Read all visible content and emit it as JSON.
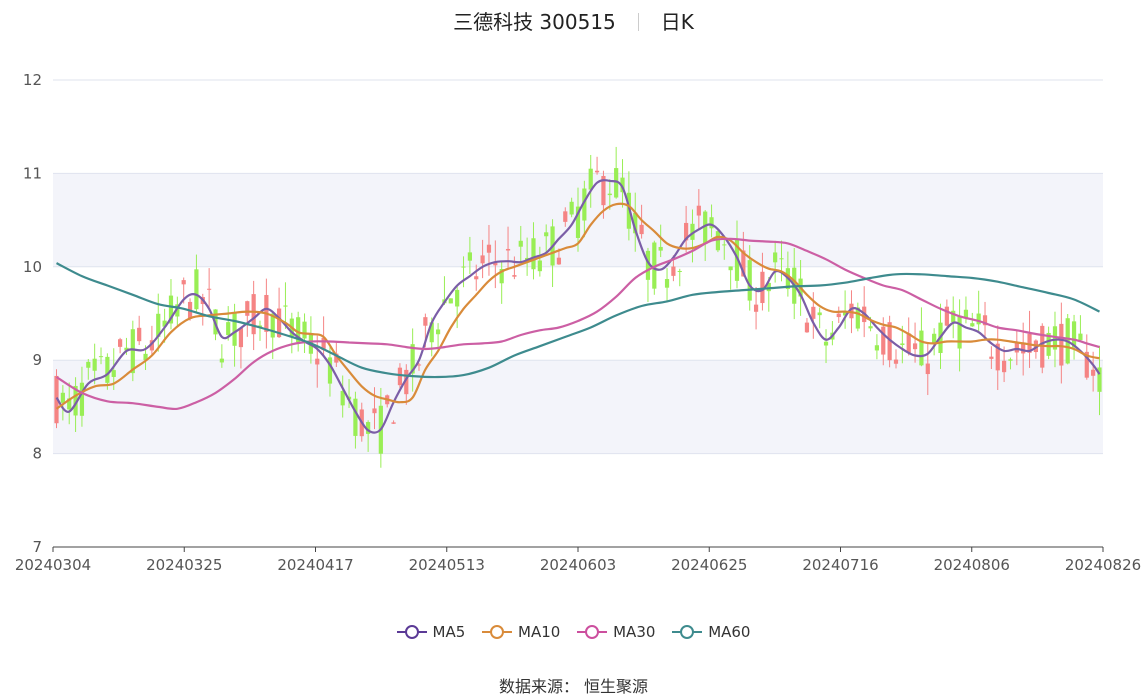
{
  "header": {
    "title": "三德科技 300515",
    "period": "日K"
  },
  "legend": {
    "ma5": "MA5",
    "ma10": "MA10",
    "ma30": "MA30",
    "ma60": "MA60"
  },
  "source": "数据来源：  恒生聚源",
  "colors": {
    "up": "#f58484",
    "down": "#99ee55",
    "ma5": "#7b5ea7",
    "ma10": "#d98b3a",
    "ma30": "#cc5fa4",
    "ma60": "#3e8b8e",
    "grid": "#dfe3ee",
    "band": "#f3f4fa"
  },
  "chart_data": {
    "type": "candlestick",
    "title": "三德科技 300515 日K",
    "ylim": [
      7,
      12
    ],
    "yticks": [
      7,
      8,
      9,
      10,
      11,
      12
    ],
    "xtick_labels": [
      "20240304",
      "20240325",
      "20240417",
      "20240513",
      "20240603",
      "20240625",
      "20240716",
      "20240806",
      "20240826"
    ],
    "series": [
      {
        "name": "MA5",
        "values": [
          [
            0,
            8.6
          ],
          [
            2,
            8.45
          ],
          [
            5,
            8.75
          ],
          [
            8,
            8.85
          ],
          [
            11,
            9.1
          ],
          [
            14,
            9.12
          ],
          [
            17,
            9.35
          ],
          [
            20,
            9.65
          ],
          [
            22,
            9.7
          ],
          [
            24,
            9.55
          ],
          [
            26,
            9.25
          ],
          [
            28,
            9.3
          ],
          [
            31,
            9.45
          ],
          [
            33,
            9.55
          ],
          [
            35,
            9.45
          ],
          [
            37,
            9.3
          ],
          [
            39,
            9.2
          ],
          [
            41,
            9.12
          ],
          [
            43,
            8.95
          ],
          [
            45,
            8.7
          ],
          [
            47,
            8.45
          ],
          [
            49,
            8.25
          ],
          [
            51,
            8.26
          ],
          [
            53,
            8.55
          ],
          [
            55,
            8.8
          ],
          [
            57,
            9.0
          ],
          [
            59,
            9.4
          ],
          [
            61,
            9.62
          ],
          [
            63,
            9.8
          ],
          [
            65,
            9.9
          ],
          [
            67,
            10.0
          ],
          [
            69,
            10.05
          ],
          [
            71,
            10.06
          ],
          [
            73,
            10.05
          ],
          [
            75,
            10.1
          ],
          [
            77,
            10.15
          ],
          [
            79,
            10.3
          ],
          [
            81,
            10.45
          ],
          [
            83,
            10.7
          ],
          [
            85,
            10.9
          ],
          [
            87,
            10.92
          ],
          [
            89,
            10.85
          ],
          [
            91,
            10.4
          ],
          [
            93,
            10.05
          ],
          [
            95,
            9.97
          ],
          [
            97,
            10.1
          ],
          [
            99,
            10.3
          ],
          [
            101,
            10.4
          ],
          [
            103,
            10.45
          ],
          [
            105,
            10.32
          ],
          [
            107,
            10.1
          ],
          [
            109,
            9.8
          ],
          [
            111,
            9.75
          ],
          [
            113,
            9.95
          ],
          [
            115,
            9.88
          ],
          [
            117,
            9.7
          ],
          [
            119,
            9.4
          ],
          [
            121,
            9.22
          ],
          [
            123,
            9.35
          ],
          [
            125,
            9.55
          ],
          [
            127,
            9.5
          ],
          [
            129,
            9.35
          ],
          [
            131,
            9.22
          ],
          [
            133,
            9.12
          ],
          [
            135,
            9.05
          ],
          [
            137,
            9.07
          ],
          [
            139,
            9.25
          ],
          [
            141,
            9.4
          ],
          [
            143,
            9.35
          ],
          [
            145,
            9.3
          ],
          [
            147,
            9.18
          ],
          [
            149,
            9.1
          ],
          [
            151,
            9.12
          ],
          [
            153,
            9.1
          ],
          [
            155,
            9.18
          ],
          [
            157,
            9.22
          ],
          [
            159,
            9.2
          ],
          [
            161,
            9.1
          ],
          [
            163,
            8.95
          ],
          [
            164,
            8.85
          ]
        ]
      },
      {
        "name": "MA10",
        "values": [
          [
            0,
            8.48
          ],
          [
            3,
            8.62
          ],
          [
            6,
            8.72
          ],
          [
            9,
            8.75
          ],
          [
            12,
            8.9
          ],
          [
            15,
            9.05
          ],
          [
            18,
            9.3
          ],
          [
            21,
            9.45
          ],
          [
            24,
            9.48
          ],
          [
            27,
            9.5
          ],
          [
            30,
            9.52
          ],
          [
            33,
            9.5
          ],
          [
            36,
            9.4
          ],
          [
            38,
            9.3
          ],
          [
            40,
            9.28
          ],
          [
            42,
            9.25
          ],
          [
            44,
            9.05
          ],
          [
            46,
            8.88
          ],
          [
            48,
            8.72
          ],
          [
            50,
            8.62
          ],
          [
            52,
            8.58
          ],
          [
            54,
            8.55
          ],
          [
            56,
            8.6
          ],
          [
            58,
            8.9
          ],
          [
            60,
            9.1
          ],
          [
            62,
            9.35
          ],
          [
            64,
            9.55
          ],
          [
            66,
            9.7
          ],
          [
            68,
            9.85
          ],
          [
            70,
            9.95
          ],
          [
            72,
            10.0
          ],
          [
            74,
            10.05
          ],
          [
            76,
            10.1
          ],
          [
            78,
            10.15
          ],
          [
            80,
            10.2
          ],
          [
            82,
            10.25
          ],
          [
            84,
            10.45
          ],
          [
            86,
            10.6
          ],
          [
            88,
            10.67
          ],
          [
            90,
            10.65
          ],
          [
            92,
            10.5
          ],
          [
            94,
            10.38
          ],
          [
            96,
            10.25
          ],
          [
            98,
            10.2
          ],
          [
            100,
            10.2
          ],
          [
            102,
            10.25
          ],
          [
            104,
            10.32
          ],
          [
            106,
            10.28
          ],
          [
            108,
            10.15
          ],
          [
            110,
            10.05
          ],
          [
            112,
            9.98
          ],
          [
            114,
            9.95
          ],
          [
            116,
            9.85
          ],
          [
            118,
            9.7
          ],
          [
            120,
            9.58
          ],
          [
            122,
            9.52
          ],
          [
            124,
            9.52
          ],
          [
            126,
            9.5
          ],
          [
            128,
            9.43
          ],
          [
            130,
            9.38
          ],
          [
            132,
            9.35
          ],
          [
            134,
            9.28
          ],
          [
            136,
            9.2
          ],
          [
            138,
            9.18
          ],
          [
            140,
            9.2
          ],
          [
            142,
            9.2
          ],
          [
            144,
            9.2
          ],
          [
            146,
            9.22
          ],
          [
            148,
            9.22
          ],
          [
            150,
            9.2
          ],
          [
            152,
            9.18
          ],
          [
            154,
            9.16
          ],
          [
            156,
            9.15
          ],
          [
            158,
            9.15
          ],
          [
            160,
            9.12
          ],
          [
            162,
            9.05
          ],
          [
            164,
            9.02
          ]
        ]
      },
      {
        "name": "MA30",
        "values": [
          [
            0,
            8.82
          ],
          [
            4,
            8.65
          ],
          [
            8,
            8.56
          ],
          [
            12,
            8.54
          ],
          [
            16,
            8.5
          ],
          [
            19,
            8.48
          ],
          [
            22,
            8.55
          ],
          [
            25,
            8.65
          ],
          [
            28,
            8.8
          ],
          [
            31,
            8.98
          ],
          [
            34,
            9.1
          ],
          [
            37,
            9.17
          ],
          [
            40,
            9.2
          ],
          [
            43,
            9.2
          ],
          [
            46,
            9.19
          ],
          [
            49,
            9.18
          ],
          [
            52,
            9.17
          ],
          [
            55,
            9.14
          ],
          [
            58,
            9.12
          ],
          [
            61,
            9.14
          ],
          [
            64,
            9.17
          ],
          [
            67,
            9.18
          ],
          [
            70,
            9.2
          ],
          [
            73,
            9.27
          ],
          [
            76,
            9.32
          ],
          [
            79,
            9.35
          ],
          [
            82,
            9.42
          ],
          [
            85,
            9.52
          ],
          [
            88,
            9.68
          ],
          [
            91,
            9.88
          ],
          [
            94,
            10.0
          ],
          [
            97,
            10.08
          ],
          [
            100,
            10.17
          ],
          [
            103,
            10.28
          ],
          [
            106,
            10.3
          ],
          [
            109,
            10.28
          ],
          [
            112,
            10.27
          ],
          [
            115,
            10.25
          ],
          [
            118,
            10.17
          ],
          [
            121,
            10.08
          ],
          [
            124,
            9.97
          ],
          [
            127,
            9.88
          ],
          [
            130,
            9.8
          ],
          [
            133,
            9.75
          ],
          [
            136,
            9.65
          ],
          [
            139,
            9.55
          ],
          [
            142,
            9.47
          ],
          [
            145,
            9.42
          ],
          [
            148,
            9.35
          ],
          [
            151,
            9.32
          ],
          [
            154,
            9.28
          ],
          [
            157,
            9.25
          ],
          [
            160,
            9.22
          ],
          [
            162,
            9.18
          ],
          [
            164,
            9.14
          ]
        ]
      },
      {
        "name": "MA60",
        "values": [
          [
            0,
            10.04
          ],
          [
            4,
            9.9
          ],
          [
            8,
            9.8
          ],
          [
            12,
            9.7
          ],
          [
            16,
            9.6
          ],
          [
            20,
            9.55
          ],
          [
            24,
            9.47
          ],
          [
            28,
            9.42
          ],
          [
            32,
            9.35
          ],
          [
            36,
            9.27
          ],
          [
            40,
            9.18
          ],
          [
            44,
            9.05
          ],
          [
            48,
            8.92
          ],
          [
            52,
            8.86
          ],
          [
            56,
            8.83
          ],
          [
            60,
            8.82
          ],
          [
            64,
            8.84
          ],
          [
            68,
            8.92
          ],
          [
            72,
            9.05
          ],
          [
            76,
            9.15
          ],
          [
            80,
            9.25
          ],
          [
            84,
            9.35
          ],
          [
            88,
            9.48
          ],
          [
            92,
            9.58
          ],
          [
            96,
            9.63
          ],
          [
            100,
            9.7
          ],
          [
            104,
            9.73
          ],
          [
            108,
            9.75
          ],
          [
            112,
            9.77
          ],
          [
            116,
            9.79
          ],
          [
            120,
            9.8
          ],
          [
            124,
            9.83
          ],
          [
            128,
            9.88
          ],
          [
            132,
            9.92
          ],
          [
            136,
            9.92
          ],
          [
            140,
            9.9
          ],
          [
            144,
            9.88
          ],
          [
            148,
            9.84
          ],
          [
            152,
            9.78
          ],
          [
            156,
            9.72
          ],
          [
            160,
            9.65
          ],
          [
            164,
            9.52
          ]
        ]
      }
    ]
  }
}
